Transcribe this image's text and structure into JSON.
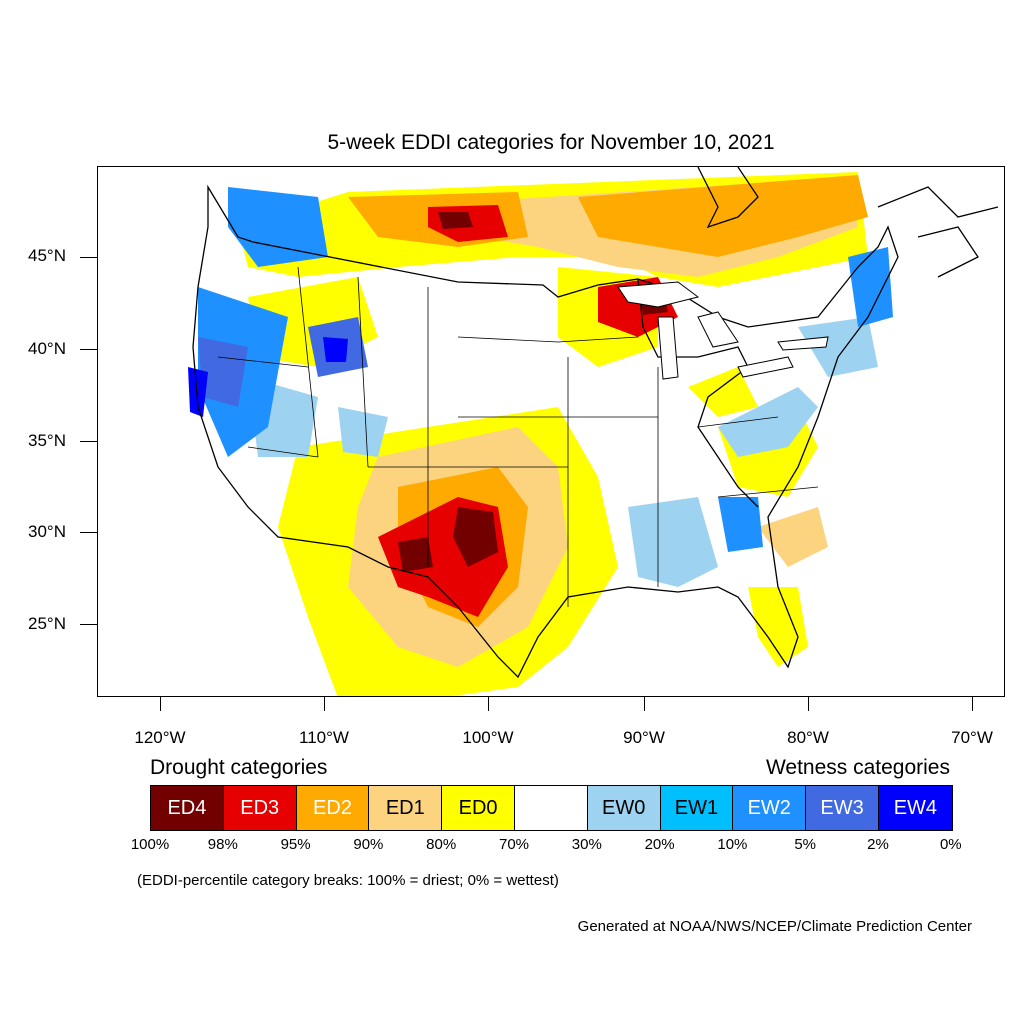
{
  "title": "5-week EDDI categories for November 10, 2021",
  "lat_labels": [
    "45°N",
    "40°N",
    "35°N",
    "30°N",
    "25°N"
  ],
  "lon_labels": [
    "120°W",
    "110°W",
    "100°W",
    "90°W",
    "80°W",
    "70°W"
  ],
  "legend": {
    "drought_heading": "Drought categories",
    "wetness_heading": "Wetness categories",
    "categories": [
      {
        "label": "ED4",
        "color": "#730000",
        "text_color": "#ffffff"
      },
      {
        "label": "ED3",
        "color": "#e60000",
        "text_color": "#ffffff"
      },
      {
        "label": "ED2",
        "color": "#ffaa00",
        "text_color": "#ffffff"
      },
      {
        "label": "ED1",
        "color": "#fcd37f",
        "text_color": "#000000"
      },
      {
        "label": "ED0",
        "color": "#ffff00",
        "text_color": "#000000"
      },
      {
        "label": "",
        "color": "#ffffff",
        "text_color": "#000000"
      },
      {
        "label": "EW0",
        "color": "#9dd3f0",
        "text_color": "#000000"
      },
      {
        "label": "EW1",
        "color": "#00bfff",
        "text_color": "#000000"
      },
      {
        "label": "EW2",
        "color": "#1e90ff",
        "text_color": "#ffffff"
      },
      {
        "label": "EW3",
        "color": "#4169e1",
        "text_color": "#ffffff"
      },
      {
        "label": "EW4",
        "color": "#0000ff",
        "text_color": "#ffffff"
      }
    ],
    "breaks": [
      "100%",
      "98%",
      "95%",
      "90%",
      "80%",
      "70%",
      "30%",
      "20%",
      "10%",
      "5%",
      "2%",
      "0%"
    ]
  },
  "note": "(EDDI-percentile category breaks: 100% = driest; 0% = wettest)",
  "credit": "Generated at NOAA/NWS/NCEP/Climate Prediction Center"
}
